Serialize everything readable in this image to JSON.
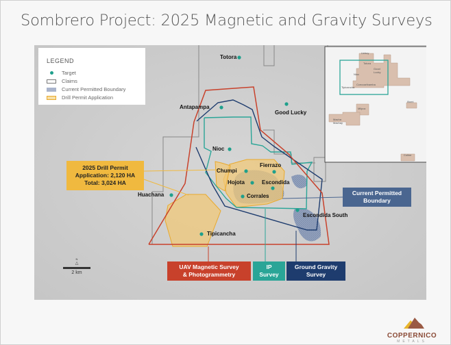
{
  "title": "Sombrero Project: 2025 Magnetic and Gravity Surveys",
  "legend": {
    "heading": "LEGEND",
    "items": [
      {
        "label": "Target",
        "icon": "teal-dot"
      },
      {
        "label": "Claims",
        "icon": "gray-outline-box"
      },
      {
        "label": "Current Permitted Boundary",
        "icon": "blue-hatched-box"
      },
      {
        "label": "Drill Permit Application",
        "icon": "orange-box"
      }
    ]
  },
  "targets": [
    "Totora",
    "Antapampa",
    "Good Lucky",
    "Nioc",
    "Chumpi",
    "Fierrazo",
    "Hojota",
    "Escondida",
    "Corrales",
    "Escondida South",
    "Huachana",
    "Tipicancha"
  ],
  "callouts": {
    "drill_permit": {
      "line1": "2025 Drill Permit",
      "line2": "Application: 2,120 HA",
      "line3": "Total: 3,024 HA"
    },
    "permitted_boundary": {
      "line1": "Current Permitted",
      "line2": "Boundary"
    },
    "uav": {
      "line1": "UAV Magnetic Survey",
      "line2": "& Photogrammetry"
    },
    "ip": {
      "line1": "IP",
      "line2": "Survey"
    },
    "gravity": {
      "line1": "Ground Gravity",
      "line2": "Survey"
    }
  },
  "inset_labels": [
    "Uchuy",
    "Totora",
    "Good Lucky",
    "Nioc",
    "Cceccaribamba",
    "Tipicancha",
    "Milpoc",
    "Macha Machay",
    "Illumi",
    "Coline"
  ],
  "scale": {
    "label": "2 km",
    "north": "N"
  },
  "logo": {
    "name": "COPPERNICO",
    "sub": "METALS"
  },
  "colors": {
    "uav": "#c8412b",
    "ip": "#2aa597",
    "gravity": "#1e3c6e",
    "drill_permit": "#f0b93f",
    "permitted": "#4a6690",
    "target": "#1fa08c"
  }
}
